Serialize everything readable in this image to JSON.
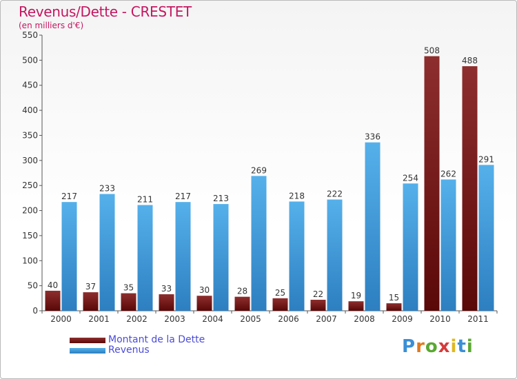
{
  "title": "Revenus/Dette - CRESTET",
  "subtitle": "(en milliers d'€)",
  "brand": "Proxiti",
  "colors": {
    "dette": "#7a1b1b",
    "revenus": "#4aa3e0",
    "title": "#c4165f",
    "legend_text": "#4b4bd8"
  },
  "chart_data": {
    "type": "bar",
    "categories": [
      "2000",
      "2001",
      "2002",
      "2003",
      "2004",
      "2005",
      "2006",
      "2007",
      "2008",
      "2009",
      "2010",
      "2011"
    ],
    "series": [
      {
        "name": "Montant de la Dette",
        "values": [
          40,
          37,
          35,
          33,
          30,
          28,
          25,
          22,
          19,
          15,
          508,
          488
        ]
      },
      {
        "name": "Revenus",
        "values": [
          217,
          233,
          211,
          217,
          213,
          269,
          218,
          222,
          336,
          254,
          262,
          291
        ]
      }
    ],
    "yticks": [
      0,
      50,
      100,
      150,
      200,
      250,
      300,
      350,
      400,
      450,
      500,
      550
    ],
    "ylim": [
      0,
      550
    ],
    "grid": false,
    "legend_position": "bottom-left"
  }
}
